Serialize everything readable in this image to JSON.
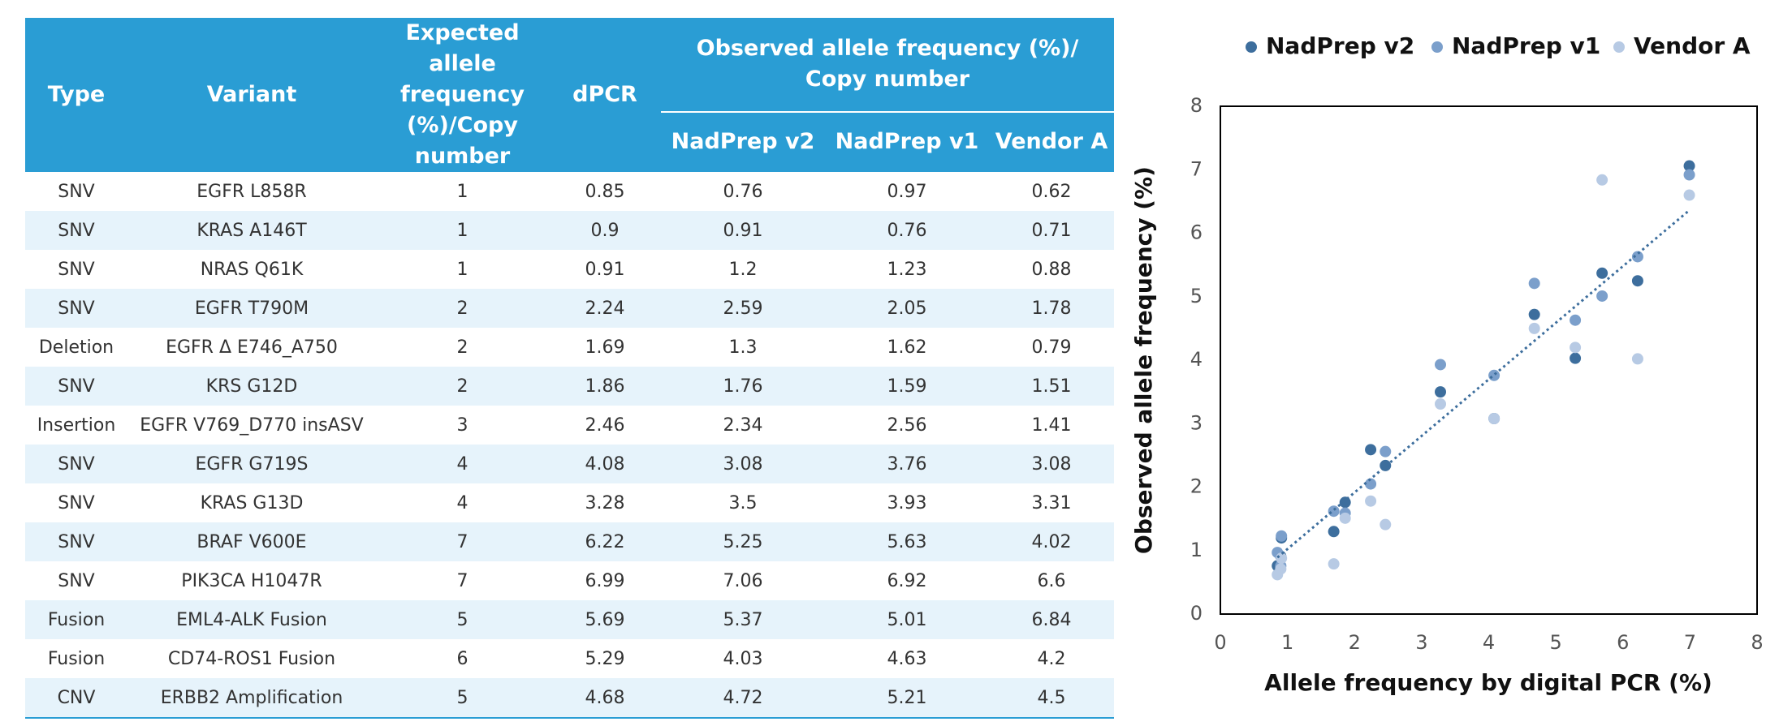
{
  "table": {
    "header": {
      "type": "Type",
      "variant": "Variant",
      "expected": "Expected allele frequency (%)/Copy number",
      "dpcr": "dPCR",
      "observed": "Observed allele frequency (%)/ Copy number",
      "sub": [
        "NadPrep v2",
        "NadPrep v1",
        "Vendor A"
      ]
    },
    "rows": [
      [
        "SNV",
        "EGFR L858R",
        "1",
        "0.85",
        "0.76",
        "0.97",
        "0.62"
      ],
      [
        "SNV",
        "KRAS A146T",
        "1",
        "0.9",
        "0.91",
        "0.76",
        "0.71"
      ],
      [
        "SNV",
        "NRAS Q61K",
        "1",
        "0.91",
        "1.2",
        "1.23",
        "0.88"
      ],
      [
        "SNV",
        "EGFR T790M",
        "2",
        "2.24",
        "2.59",
        "2.05",
        "1.78"
      ],
      [
        "Deletion",
        "EGFR Δ E746_A750",
        "2",
        "1.69",
        "1.3",
        "1.62",
        "0.79"
      ],
      [
        "SNV",
        "KRS G12D",
        "2",
        "1.86",
        "1.76",
        "1.59",
        "1.51"
      ],
      [
        "Insertion",
        "EGFR V769_D770 insASV",
        "3",
        "2.46",
        "2.34",
        "2.56",
        "1.41"
      ],
      [
        "SNV",
        "EGFR G719S",
        "4",
        "4.08",
        "3.08",
        "3.76",
        "3.08"
      ],
      [
        "SNV",
        "KRAS G13D",
        "4",
        "3.28",
        "3.5",
        "3.93",
        "3.31"
      ],
      [
        "SNV",
        "BRAF V600E",
        "7",
        "6.22",
        "5.25",
        "5.63",
        "4.02"
      ],
      [
        "SNV",
        "PIK3CA H1047R",
        "7",
        "6.99",
        "7.06",
        "6.92",
        "6.6"
      ],
      [
        "Fusion",
        "EML4-ALK Fusion",
        "5",
        "5.69",
        "5.37",
        "5.01",
        "6.84"
      ],
      [
        "Fusion",
        "CD74-ROS1 Fusion",
        "6",
        "5.29",
        "4.03",
        "4.63",
        "4.2"
      ],
      [
        "CNV",
        "ERBB2 Amplification",
        "5",
        "4.68",
        "4.72",
        "5.21",
        "4.5"
      ]
    ]
  },
  "chart_data": {
    "type": "scatter",
    "xlabel": "Allele frequency by digital PCR (%)",
    "ylabel": "Observed allele frequency (%)",
    "x": [
      0.85,
      0.9,
      0.91,
      2.24,
      1.69,
      1.86,
      2.46,
      4.08,
      3.28,
      6.22,
      6.99,
      5.69,
      5.29,
      4.68
    ],
    "series": [
      {
        "name": "NadPrep v2",
        "color": "#3d6e9d",
        "values": [
          0.76,
          0.91,
          1.2,
          2.59,
          1.3,
          1.76,
          2.34,
          3.08,
          3.5,
          5.25,
          7.06,
          5.37,
          4.03,
          4.72
        ]
      },
      {
        "name": "NadPrep v1",
        "color": "#7b9fcb",
        "values": [
          0.97,
          0.76,
          1.23,
          2.05,
          1.62,
          1.59,
          2.56,
          3.76,
          3.93,
          5.63,
          6.92,
          5.01,
          4.63,
          5.21
        ]
      },
      {
        "name": "Vendor A",
        "color": "#b7cae4",
        "values": [
          0.62,
          0.71,
          0.88,
          1.78,
          0.79,
          1.51,
          1.41,
          3.08,
          3.31,
          4.02,
          6.6,
          6.84,
          4.2,
          4.5
        ]
      }
    ],
    "xlim": [
      0,
      8
    ],
    "ylim": [
      0,
      8
    ],
    "xticks": [
      0,
      1,
      2,
      3,
      4,
      5,
      6,
      7,
      8
    ],
    "yticks": [
      0,
      1,
      2,
      3,
      4,
      5,
      6,
      7,
      8
    ],
    "legend": "top",
    "trendline": true,
    "grid": false
  }
}
